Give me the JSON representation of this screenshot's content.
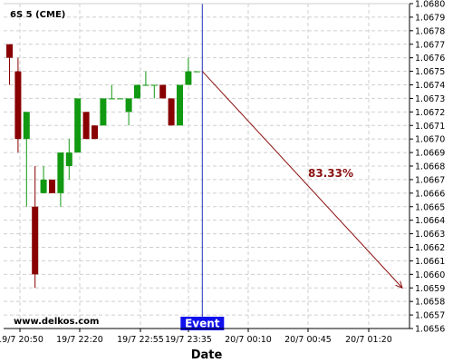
{
  "chart_data": {
    "type": "candlestick",
    "title": "6S 5 (CME)",
    "xlabel": "Date",
    "ylabel": "",
    "ylim": [
      1.0656,
      1.068
    ],
    "y_ticks": [
      "1.0656",
      "1.0657",
      "1.0658",
      "1.0659",
      "1.0660",
      "1.0661",
      "1.0662",
      "1.0663",
      "1.0664",
      "1.0665",
      "1.0666",
      "1.0667",
      "1.0668",
      "1.0669",
      "1.0670",
      "1.0671",
      "1.0672",
      "1.0673",
      "1.0674",
      "1.0675",
      "1.0676",
      "1.0677",
      "1.0678",
      "1.0679",
      "1.0680"
    ],
    "x_ticks": [
      "19/7 20:50",
      "19/7 22:20",
      "19/7 22:55",
      "19/7 23:35",
      "20/7 00:10",
      "20/7 00:45",
      "20/7 01:20"
    ],
    "grid": true,
    "colors": {
      "up": "#119911",
      "down": "#880000",
      "event_line": "#2233bb",
      "arrow": "#8b1010"
    },
    "candles": [
      {
        "o": 1.0677,
        "h": 1.0677,
        "l": 1.0674,
        "c": 1.0676
      },
      {
        "o": 1.0675,
        "h": 1.0676,
        "l": 1.0669,
        "c": 1.067
      },
      {
        "o": 1.067,
        "h": 1.0672,
        "l": 1.0665,
        "c": 1.0672
      },
      {
        "o": 1.0665,
        "h": 1.0668,
        "l": 1.0659,
        "c": 1.066
      },
      {
        "o": 1.0666,
        "h": 1.0668,
        "l": 1.0666,
        "c": 1.0667
      },
      {
        "o": 1.0667,
        "h": 1.0667,
        "l": 1.0666,
        "c": 1.0666
      },
      {
        "o": 1.0666,
        "h": 1.0669,
        "l": 1.0665,
        "c": 1.0669
      },
      {
        "o": 1.0668,
        "h": 1.067,
        "l": 1.0667,
        "c": 1.0669
      },
      {
        "o": 1.0669,
        "h": 1.0673,
        "l": 1.0669,
        "c": 1.0673
      },
      {
        "o": 1.0672,
        "h": 1.0672,
        "l": 1.067,
        "c": 1.067
      },
      {
        "o": 1.0671,
        "h": 1.0671,
        "l": 1.067,
        "c": 1.067
      },
      {
        "o": 1.0671,
        "h": 1.0673,
        "l": 1.0671,
        "c": 1.0673
      },
      {
        "o": 1.0673,
        "h": 1.0674,
        "l": 1.0673,
        "c": 1.0673
      },
      {
        "o": 1.0673,
        "h": 1.0673,
        "l": 1.0673,
        "c": 1.0673
      },
      {
        "o": 1.0672,
        "h": 1.0673,
        "l": 1.0671,
        "c": 1.0673
      },
      {
        "o": 1.0673,
        "h": 1.0674,
        "l": 1.0673,
        "c": 1.0674
      },
      {
        "o": 1.0674,
        "h": 1.0675,
        "l": 1.0674,
        "c": 1.0674
      },
      {
        "o": 1.0674,
        "h": 1.0674,
        "l": 1.0673,
        "c": 1.0674
      },
      {
        "o": 1.0674,
        "h": 1.0674,
        "l": 1.0673,
        "c": 1.0673
      },
      {
        "o": 1.0673,
        "h": 1.0673,
        "l": 1.0671,
        "c": 1.0671
      },
      {
        "o": 1.0671,
        "h": 1.0674,
        "l": 1.0671,
        "c": 1.0674
      },
      {
        "o": 1.0674,
        "h": 1.0676,
        "l": 1.0674,
        "c": 1.0675
      },
      {
        "o": 1.0675,
        "h": 1.0675,
        "l": 1.0675,
        "c": 1.0675
      }
    ],
    "event": {
      "label": "Event"
    },
    "projection": {
      "label": "83.33%",
      "from": 1.0675,
      "to": 1.0659
    },
    "watermark": "www.delkos.com"
  }
}
